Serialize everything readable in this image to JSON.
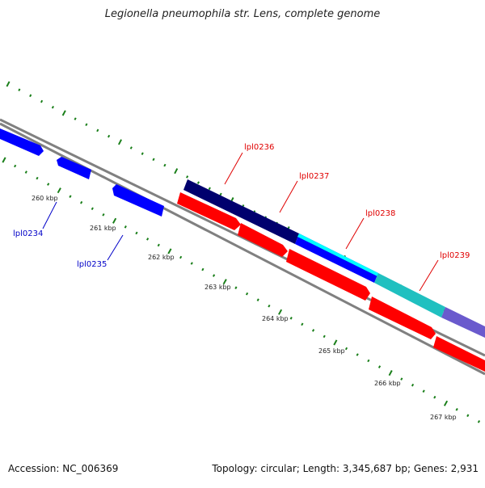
{
  "title": "Legionella pneumophila str. Lens, complete genome",
  "footer": {
    "accession": "Accession: NC_006369",
    "summary": "Topology: circular; Length: 3,345,687 bp; Genes: 2,931"
  },
  "scale_labels": [
    "260 kbp",
    "261 kbp",
    "262 kbp",
    "263 kbp",
    "264 kbp",
    "265 kbp",
    "266 kbp",
    "267 kbp"
  ],
  "gene_labels": {
    "forward": [
      "lpl0236",
      "lpl0237",
      "lpl0238",
      "lpl0239"
    ],
    "reverse": [
      "lpl0234",
      "lpl0235"
    ]
  },
  "colors": {
    "forward_gene": "#ff0000",
    "reverse_gene": "#0000ff",
    "backbone": "#808080",
    "tick": "#1a7f1a",
    "cog_track": [
      "#00006e",
      "#0000ff",
      "#00ffff",
      "#20c0c0",
      "#6a5acd"
    ]
  }
}
